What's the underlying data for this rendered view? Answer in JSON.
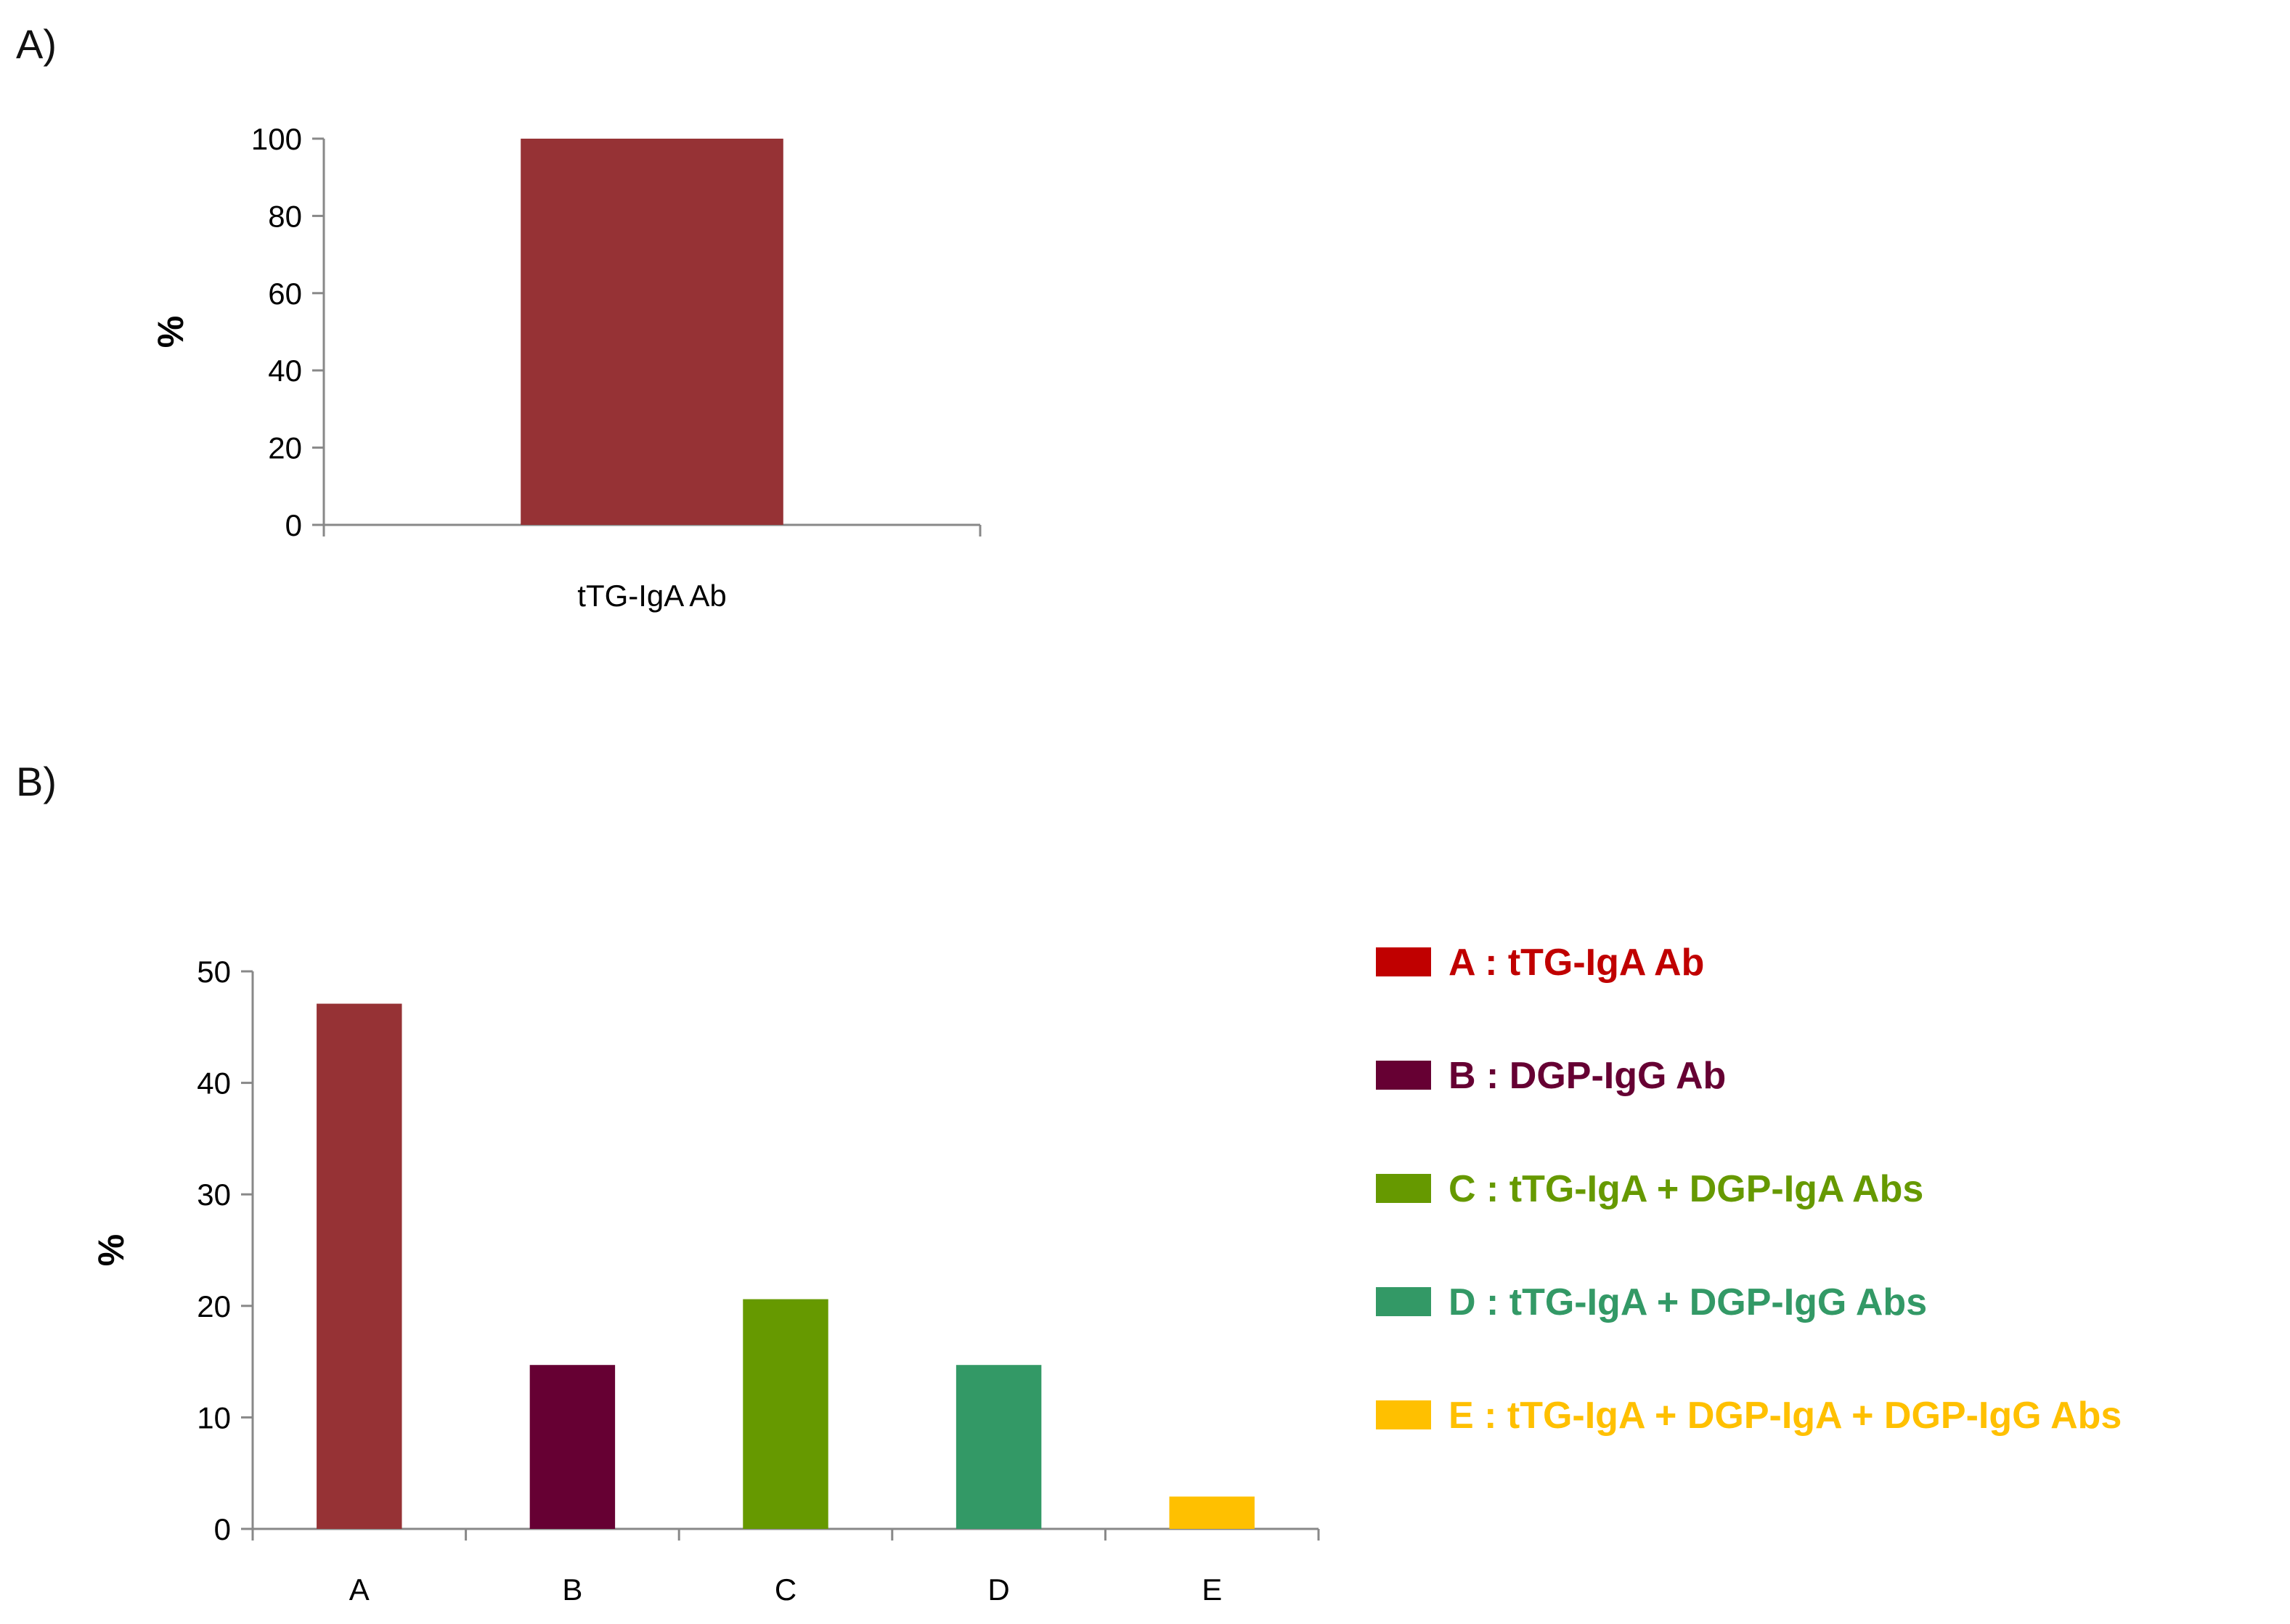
{
  "panels": {
    "a_label": "A)",
    "b_label": "B)"
  },
  "chart_data": [
    {
      "type": "bar",
      "categories": [
        "tTG-IgA Ab"
      ],
      "values": [
        100
      ],
      "ylabel": "%",
      "ylim": [
        0,
        100
      ],
      "yticks": [
        0,
        20,
        40,
        60,
        80,
        100
      ],
      "grid": false,
      "colors": [
        "#963235"
      ]
    },
    {
      "type": "bar",
      "categories": [
        "A",
        "B",
        "C",
        "D",
        "E"
      ],
      "values": [
        47.1,
        14.7,
        20.6,
        14.7,
        2.9
      ],
      "ylabel": "%",
      "ylim": [
        0,
        50
      ],
      "yticks": [
        0,
        10,
        20,
        30,
        40,
        50
      ],
      "grid": false,
      "legend_position": "right",
      "colors": [
        "#963235",
        "#660033",
        "#669900",
        "#339966",
        "#FFC000"
      ],
      "legend": [
        {
          "label": "A : tTG-IgA Ab",
          "swatch": "#C00000",
          "text_color": "#C00000"
        },
        {
          "label": "B : DGP-IgG Ab",
          "swatch": "#660033",
          "text_color": "#660033"
        },
        {
          "label": "C : tTG-IgA + DGP-IgA Abs",
          "swatch": "#669900",
          "text_color": "#669900"
        },
        {
          "label": "D : tTG-IgA + DGP-IgG Abs",
          "swatch": "#339966",
          "text_color": "#339966"
        },
        {
          "label": "E : tTG-IgA + DGP-IgA + DGP-IgG Abs",
          "swatch": "#FFC000",
          "text_color": "#FFC000"
        }
      ]
    }
  ]
}
